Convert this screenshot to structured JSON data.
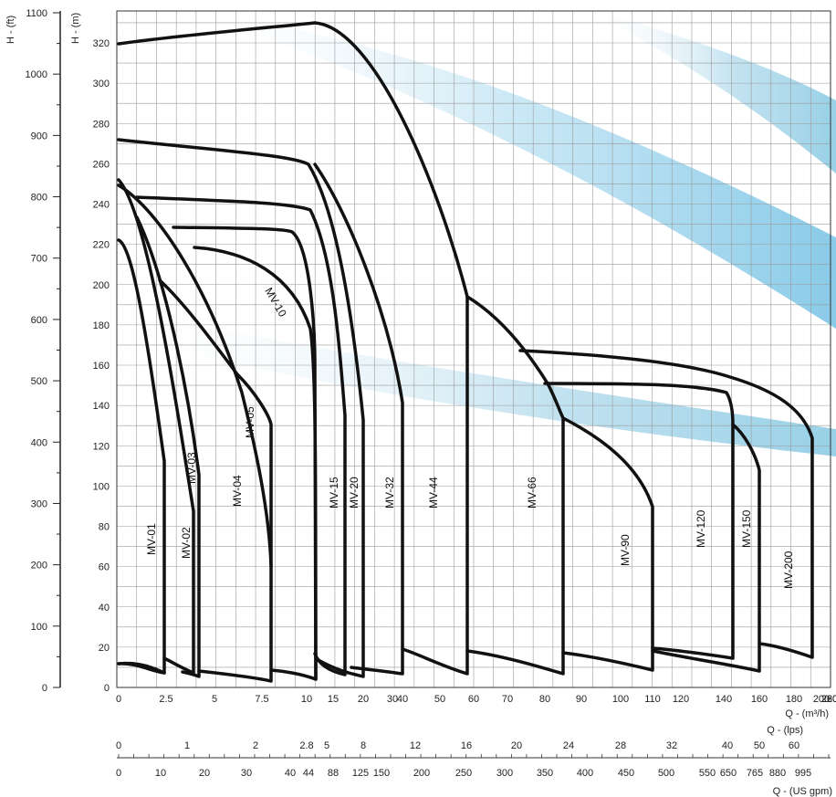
{
  "chart_data": {
    "type": "line",
    "title": "",
    "y_axes": {
      "meters": {
        "label": "H - (m)",
        "ticks": [
          0,
          20,
          40,
          60,
          80,
          100,
          120,
          140,
          160,
          180,
          200,
          220,
          240,
          260,
          280,
          300,
          320
        ]
      },
      "feet": {
        "label": "H - (ft)",
        "ticks": [
          0,
          100,
          200,
          300,
          400,
          500,
          600,
          700,
          800,
          900,
          1000,
          1100
        ]
      }
    },
    "x_axes": {
      "m3h": {
        "label": "Q - (m³/h)",
        "tick_labels": [
          "0",
          "2.5",
          "5",
          "7.5",
          "10",
          "15",
          "20",
          "30",
          "40",
          "50",
          "60",
          "70",
          "80",
          "90",
          "100",
          "110",
          "120",
          "140",
          "160",
          "180",
          "200",
          "220",
          "260"
        ]
      },
      "lps": {
        "label": "Q - (lps)",
        "tick_labels": [
          "0",
          "1",
          "2",
          "2.8",
          "5",
          "8",
          "12",
          "16",
          "20",
          "24",
          "28",
          "32",
          "40",
          "50",
          "60"
        ]
      },
      "usgpm": {
        "label": "Q - (US gpm)",
        "tick_labels": [
          "0",
          "10",
          "20",
          "30",
          "40",
          "44",
          "88",
          "125",
          "150",
          "200",
          "250",
          "300",
          "350",
          "400",
          "450",
          "500",
          "550",
          "650",
          "765",
          "880",
          "995"
        ]
      }
    },
    "series": [
      {
        "name": "MV-01"
      },
      {
        "name": "MV-02"
      },
      {
        "name": "MV-03"
      },
      {
        "name": "MV-04"
      },
      {
        "name": "MV-05"
      },
      {
        "name": "MV-10"
      },
      {
        "name": "MV-15"
      },
      {
        "name": "MV-20"
      },
      {
        "name": "MV-32"
      },
      {
        "name": "MV-44"
      },
      {
        "name": "MV-66"
      },
      {
        "name": "MV-90"
      },
      {
        "name": "MV-120"
      },
      {
        "name": "MV-150"
      },
      {
        "name": "MV-200"
      }
    ]
  }
}
